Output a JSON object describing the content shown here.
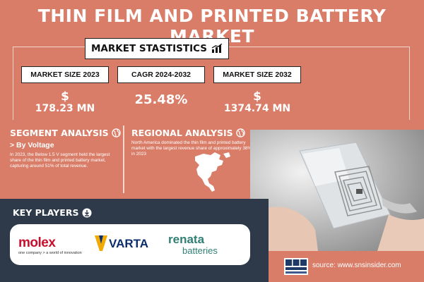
{
  "title": "THIN FILM AND PRINTED BATTERY MARKET",
  "market_stats": {
    "heading": "MARKET STASTISTICS",
    "icon": "growth-chart-icon",
    "items": [
      {
        "label": "MARKET SIZE 2023",
        "symbol": "$",
        "value": "178.23 MN"
      },
      {
        "label": "CAGR 2024-2032",
        "symbol": "",
        "value": "25.48%"
      },
      {
        "label": "MARKET SIZE 2032",
        "symbol": "$",
        "value": "1374.74 MN"
      }
    ]
  },
  "segment": {
    "heading": "SEGMENT ANALYSIS",
    "icon": "globe-icon",
    "subheading": "> By Voltage",
    "text": "In 2023, the Below 1.5 V segment held the largest share of the thin film and printed battery market, capturing around 51% of total revenue."
  },
  "regional": {
    "heading": "REGIONAL ANALYSIS",
    "icon": "globe-icon",
    "text": "North America dominated the thin film and printed battery market with the largest revenue share of approximately 38% in 2023"
  },
  "key_players": {
    "heading": "KEY PLAYERS",
    "icon": "download-circle-icon",
    "logos": [
      {
        "name": "molex",
        "tagline": "one company > a world of innovation"
      },
      {
        "name": "VARTA"
      },
      {
        "name": "renata",
        "sub": "batteries"
      }
    ]
  },
  "source": "source: www.snsinsider.com",
  "colors": {
    "background": "#d97d68",
    "panel": "#2e3a4a",
    "molex": "#c8102e",
    "varta": "#0b2d6b",
    "renata": "#2f7f74"
  }
}
